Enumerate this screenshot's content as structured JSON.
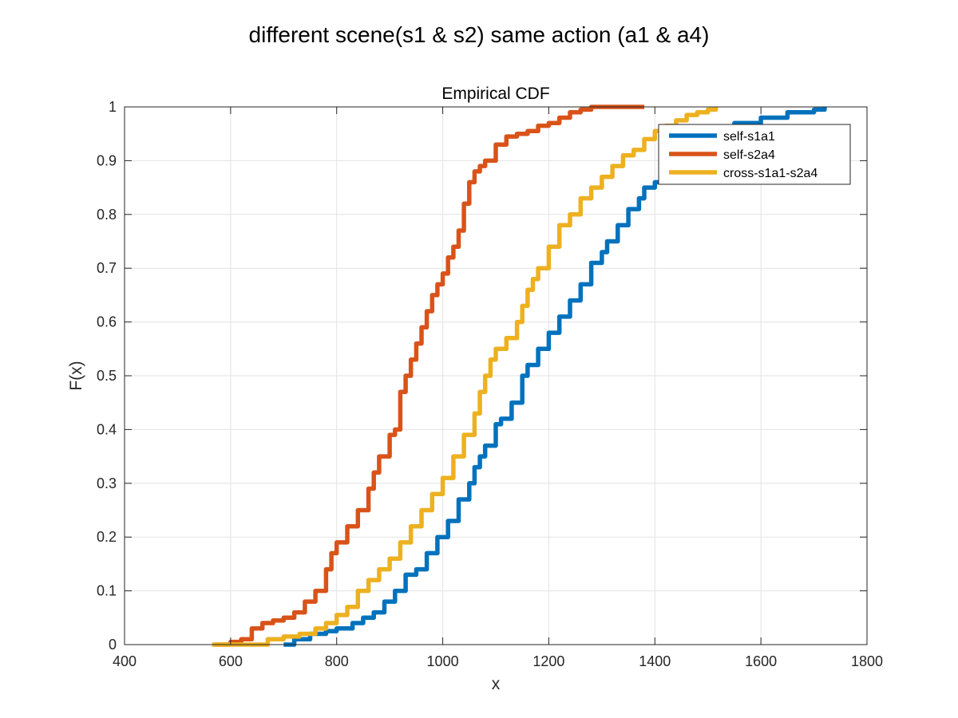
{
  "figure": {
    "title": "different scene(s1 & s2) same action (a1 & a4)"
  },
  "chart_data": {
    "type": "line",
    "title": "Empirical CDF",
    "xlabel": "x",
    "ylabel": "F(x)",
    "xlim": [
      400,
      1800
    ],
    "ylim": [
      0,
      1
    ],
    "xticks": [
      400,
      600,
      800,
      1000,
      1200,
      1400,
      1600,
      1800
    ],
    "yticks": [
      0,
      0.1,
      0.2,
      0.3,
      0.4,
      0.5,
      0.6,
      0.7,
      0.8,
      0.9,
      1
    ],
    "ytick_labels": [
      "0",
      "0.1",
      "0.2",
      "0.3",
      "0.4",
      "0.5",
      "0.6",
      "0.7",
      "0.8",
      "0.9",
      "1"
    ],
    "grid": true,
    "legend_position": "top-right",
    "series": [
      {
        "name": "self-s1a1",
        "color": "#0072BD",
        "x": [
          700,
          720,
          750,
          780,
          800,
          830,
          850,
          870,
          890,
          910,
          930,
          950,
          970,
          990,
          1010,
          1030,
          1050,
          1060,
          1070,
          1080,
          1100,
          1110,
          1130,
          1150,
          1160,
          1180,
          1200,
          1220,
          1240,
          1260,
          1280,
          1300,
          1310,
          1330,
          1350,
          1370,
          1380,
          1400,
          1420,
          1450,
          1500,
          1550,
          1600,
          1650,
          1700,
          1720
        ],
        "y": [
          0,
          0.01,
          0.02,
          0.025,
          0.03,
          0.04,
          0.05,
          0.06,
          0.08,
          0.1,
          0.13,
          0.14,
          0.17,
          0.2,
          0.23,
          0.27,
          0.3,
          0.33,
          0.35,
          0.37,
          0.41,
          0.42,
          0.45,
          0.5,
          0.52,
          0.55,
          0.58,
          0.61,
          0.64,
          0.67,
          0.71,
          0.73,
          0.75,
          0.78,
          0.81,
          0.83,
          0.85,
          0.86,
          0.88,
          0.91,
          0.94,
          0.97,
          0.98,
          0.99,
          0.995,
          1
        ]
      },
      {
        "name": "self-s2a4",
        "color": "#D95319",
        "x": [
          570,
          600,
          620,
          640,
          660,
          680,
          700,
          720,
          740,
          760,
          780,
          790,
          800,
          820,
          840,
          860,
          870,
          880,
          900,
          910,
          920,
          930,
          940,
          950,
          960,
          970,
          980,
          990,
          1000,
          1010,
          1020,
          1030,
          1040,
          1050,
          1060,
          1070,
          1080,
          1100,
          1120,
          1140,
          1160,
          1180,
          1200,
          1220,
          1240,
          1260,
          1280,
          1320,
          1380
        ],
        "y": [
          0,
          0.005,
          0.01,
          0.03,
          0.04,
          0.045,
          0.05,
          0.06,
          0.08,
          0.1,
          0.14,
          0.17,
          0.19,
          0.22,
          0.25,
          0.29,
          0.32,
          0.35,
          0.39,
          0.4,
          0.47,
          0.5,
          0.53,
          0.56,
          0.59,
          0.62,
          0.65,
          0.67,
          0.69,
          0.72,
          0.74,
          0.77,
          0.82,
          0.86,
          0.88,
          0.89,
          0.9,
          0.93,
          0.945,
          0.95,
          0.955,
          0.965,
          0.97,
          0.98,
          0.99,
          0.995,
          1,
          1,
          1
        ]
      },
      {
        "name": "cross-s1a1-s2a4",
        "color": "#EDB120",
        "x": [
          565,
          600,
          640,
          670,
          700,
          730,
          760,
          780,
          800,
          820,
          840,
          860,
          880,
          900,
          920,
          940,
          960,
          980,
          1000,
          1020,
          1040,
          1060,
          1070,
          1080,
          1090,
          1100,
          1120,
          1140,
          1150,
          1160,
          1170,
          1180,
          1200,
          1220,
          1240,
          1260,
          1280,
          1300,
          1320,
          1340,
          1360,
          1380,
          1400,
          1420,
          1440,
          1460,
          1480,
          1500,
          1515
        ],
        "y": [
          0,
          0,
          0,
          0.01,
          0.015,
          0.02,
          0.03,
          0.04,
          0.055,
          0.07,
          0.1,
          0.12,
          0.14,
          0.16,
          0.19,
          0.22,
          0.25,
          0.28,
          0.31,
          0.35,
          0.39,
          0.43,
          0.47,
          0.5,
          0.53,
          0.55,
          0.57,
          0.6,
          0.63,
          0.66,
          0.68,
          0.7,
          0.74,
          0.78,
          0.8,
          0.83,
          0.85,
          0.87,
          0.89,
          0.91,
          0.92,
          0.94,
          0.955,
          0.965,
          0.975,
          0.985,
          0.99,
          0.995,
          1
        ]
      }
    ]
  }
}
